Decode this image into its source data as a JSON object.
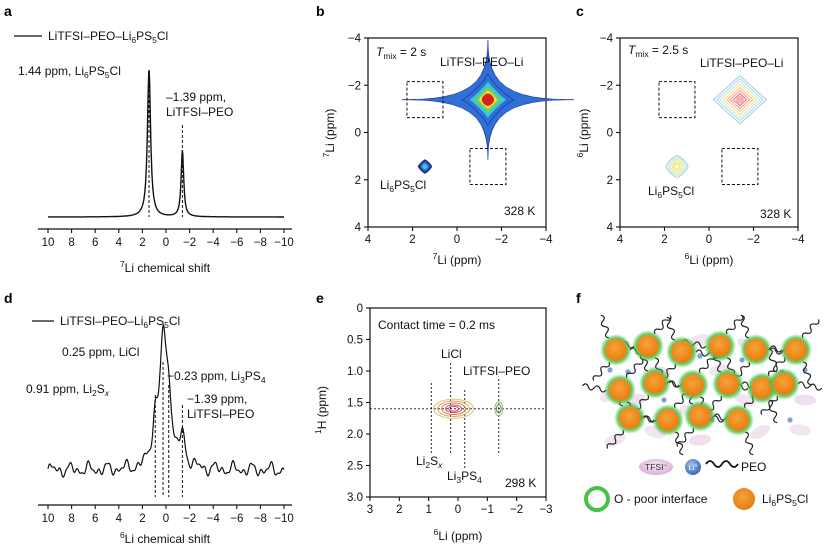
{
  "panel_letters": {
    "a": "a",
    "b": "b",
    "c": "c",
    "d": "d",
    "e": "e",
    "f": "f"
  },
  "colors": {
    "blue_dark": "#1b2f8f",
    "blue": "#2f6fd6",
    "cyan": "#3cc5d8",
    "green": "#6fd35a",
    "yellow": "#f2e23a",
    "red": "#d81e1e",
    "particle": "#f2891c",
    "interface": "#46c246",
    "tfsi": "#e6c9e4",
    "li": "#5b86c9"
  },
  "chart_data": [
    {
      "id": "a",
      "type": "line",
      "title": "LiTFSI–PEO–Li6PS5Cl",
      "legend": {
        "text": "LiTFSI–PEO–Li",
        "sub": "6",
        "mid": "PS",
        "sub2": "5",
        "tail": "Cl"
      },
      "xlabel": {
        "pre": "",
        "sup": "7",
        "main": "Li chemical shift"
      },
      "xlim": [
        10,
        -10
      ],
      "xticks": [
        "10",
        "8",
        "6",
        "4",
        "2",
        "0",
        "−2",
        "−4",
        "−6",
        "−8",
        "−10"
      ],
      "xtick_values": [
        10,
        8,
        6,
        4,
        2,
        0,
        -2,
        -4,
        -6,
        -8,
        -10
      ],
      "peaks": [
        {
          "ppm": 1.44,
          "height": 1.0
        },
        {
          "ppm": -1.39,
          "height": 0.45
        }
      ],
      "annotations": [
        {
          "main": "1.44 ppm, Li",
          "sub": "6",
          "mid": "PS",
          "sub2": "5",
          "tail": "Cl"
        },
        {
          "line1": "–1.39 ppm,",
          "line2": "LiTFSI–PEO"
        }
      ]
    },
    {
      "id": "b",
      "type": "heatmap",
      "title": "Tmix = 2 s",
      "tmix": {
        "T": "T",
        "sub": "mix",
        "rest": " = 2 s"
      },
      "xlabel": {
        "sup": "7",
        "main": "Li (ppm)"
      },
      "ylabel": {
        "sup": "7",
        "main": "Li (ppm)"
      },
      "xlim": [
        4,
        -4
      ],
      "ylim": [
        -4,
        4
      ],
      "xticks": [
        "4",
        "2",
        "0",
        "−2",
        "−4"
      ],
      "xtick_values": [
        4,
        2,
        0,
        -2,
        -4
      ],
      "yticks": [
        "−4",
        "−2",
        "0",
        "2",
        "4"
      ],
      "ytick_values": [
        -4,
        -2,
        0,
        2,
        4
      ],
      "peaks": [
        {
          "x": -1.39,
          "y": -1.39,
          "label": "LiTFSI–PEO–Li"
        },
        {
          "x": 1.44,
          "y": 1.44,
          "label": "Li6PS5Cl"
        }
      ],
      "cross_peak_boxes": [
        {
          "x": 1.44,
          "y": -1.39
        },
        {
          "x": -1.39,
          "y": 1.44
        }
      ],
      "labels": {
        "strong": "LiTFSI–PEO–Li",
        "weak": {
          "main": "Li",
          "sub": "6",
          "mid": "PS",
          "sub2": "5",
          "tail": "Cl"
        }
      },
      "temperature": "328 K"
    },
    {
      "id": "c",
      "type": "heatmap",
      "title": "Tmix = 2.5 s",
      "tmix": {
        "T": "T",
        "sub": "mix",
        "rest": " = 2.5 s"
      },
      "xlabel": {
        "sup": "6",
        "main": "Li (ppm)"
      },
      "ylabel": {
        "sup": "6",
        "main": "Li (ppm)"
      },
      "xlim": [
        4,
        -4
      ],
      "ylim": [
        -4,
        4
      ],
      "xticks": [
        "4",
        "2",
        "0",
        "−2",
        "−4"
      ],
      "xtick_values": [
        4,
        2,
        0,
        -2,
        -4
      ],
      "yticks": [
        "−4",
        "−2",
        "0",
        "2",
        "4"
      ],
      "ytick_values": [
        -4,
        -2,
        0,
        2,
        4
      ],
      "peaks": [
        {
          "x": -1.39,
          "y": -1.39,
          "label": "LiTFSI–PEO–Li"
        },
        {
          "x": 1.44,
          "y": 1.44,
          "label": "Li6PS5Cl"
        }
      ],
      "cross_peak_boxes": [
        {
          "x": 1.44,
          "y": -1.39
        },
        {
          "x": -1.39,
          "y": 1.44
        }
      ],
      "labels": {
        "strong": "LiTFSI–PEO–Li",
        "weak": {
          "main": "Li",
          "sub": "6",
          "mid": "PS",
          "sub2": "5",
          "tail": "Cl"
        }
      },
      "temperature": "328 K"
    },
    {
      "id": "d",
      "type": "line",
      "title": "LiTFSI–PEO–Li6PS5Cl",
      "legend": {
        "text": "LiTFSI–PEO–Li",
        "sub": "6",
        "mid": "PS",
        "sub2": "5",
        "tail": "Cl"
      },
      "xlabel": {
        "sup": "6",
        "main": "Li chemical shift"
      },
      "xlim": [
        10,
        -10
      ],
      "xticks": [
        "10",
        "8",
        "6",
        "4",
        "2",
        "0",
        "−2",
        "−4",
        "−6",
        "−8",
        "−10"
      ],
      "xtick_values": [
        10,
        8,
        6,
        4,
        2,
        0,
        -2,
        -4,
        -6,
        -8,
        -10
      ],
      "peaks": [
        {
          "ppm": 0.25,
          "height": 1.0
        },
        {
          "ppm": 0.91,
          "height": 0.35
        },
        {
          "ppm": -0.23,
          "height": 0.55
        },
        {
          "ppm": -1.39,
          "height": 0.25
        }
      ],
      "annotations": [
        {
          "text": "0.25 ppm, LiCl"
        },
        {
          "main": "0.91 ppm, Li",
          "sub": "2",
          "mid": "S",
          "subi": "x"
        },
        {
          "main": "−0.23 ppm, Li",
          "sub": "3",
          "mid": "PS",
          "sub2": "4"
        },
        {
          "line1": "−1.39 ppm,",
          "line2": "LiTFSI–PEO"
        }
      ]
    },
    {
      "id": "e",
      "type": "heatmap",
      "title": "Contact time = 0.2 ms",
      "xlabel": {
        "sup": "6",
        "main": "Li (ppm)"
      },
      "ylabel": {
        "sup": "1",
        "main": "H (ppm)"
      },
      "xlim": [
        3,
        -3
      ],
      "ylim": [
        0,
        3.0
      ],
      "xticks": [
        "3",
        "2",
        "1",
        "0",
        "−1",
        "−2",
        "−3"
      ],
      "xtick_values": [
        3,
        2,
        1,
        0,
        -1,
        -2,
        -3
      ],
      "yticks": [
        "0",
        "0.5",
        "1.0",
        "1.5",
        "2.0",
        "2.5",
        "3.0"
      ],
      "ytick_values": [
        0,
        0.5,
        1.0,
        1.5,
        2.0,
        2.5,
        3.0
      ],
      "h_line": 1.6,
      "peaks": [
        {
          "x": 0.91,
          "y": 1.6
        },
        {
          "x": 0.25,
          "y": 1.6
        },
        {
          "x": -0.23,
          "y": 1.6
        },
        {
          "x": -1.39,
          "y": 1.6
        }
      ],
      "labels": {
        "licl": "LiCl",
        "peo": "LiTFSI–PEO",
        "li2sx": {
          "main": "Li",
          "sub": "2",
          "mid": "S",
          "subi": "x"
        },
        "li3ps4": {
          "main": "Li",
          "sub": "3",
          "mid": "PS",
          "sub2": "4"
        }
      },
      "temperature": "298 K"
    }
  ],
  "schematic": {
    "legend": {
      "tfsi": "TFSI",
      "tfsi_sup": "−",
      "li": "Li",
      "li_sup": "+",
      "peo": "PEO",
      "interface": "O - poor interface",
      "particle": {
        "main": "Li",
        "sub": "6",
        "mid": "PS",
        "sub2": "5",
        "tail": "Cl"
      }
    }
  }
}
